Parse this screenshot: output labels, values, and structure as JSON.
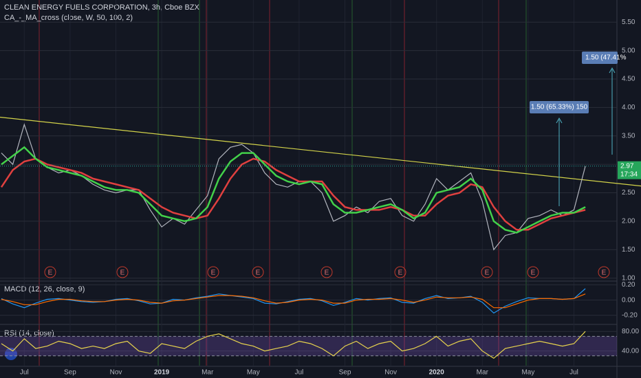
{
  "header": {
    "title": "CLEAN ENERGY FUELS CORPORATION, 3h, Cboe BZX",
    "indicator": "CA_-_MA_cross (close, W, 50, 100, 2)"
  },
  "chart_data": [
    {
      "type": "line",
      "categories": [
        null,
        null,
        "Jul",
        null,
        null,
        null,
        "Sep",
        null,
        null,
        null,
        "Nov",
        null,
        null,
        null,
        "2019",
        null,
        null,
        null,
        "Mar",
        null,
        null,
        null,
        "May",
        null,
        null,
        null,
        "Jul",
        null,
        null,
        null,
        "Sep",
        null,
        null,
        null,
        "Nov",
        null,
        null,
        null,
        "2020",
        null,
        null,
        null,
        "Mar",
        null,
        null,
        null,
        "May",
        null,
        null,
        null,
        "Jul",
        null,
        null
      ],
      "series": [
        {
          "color": "#b2b5be",
          "values": [
            3.2,
            3.0,
            3.7,
            3.1,
            2.95,
            2.85,
            2.9,
            2.8,
            2.65,
            2.55,
            2.5,
            2.55,
            2.55,
            2.2,
            1.9,
            2.05,
            1.95,
            2.2,
            2.45,
            3.1,
            3.3,
            3.35,
            3.2,
            2.85,
            2.65,
            2.6,
            2.7,
            2.7,
            2.5,
            2.0,
            2.1,
            2.25,
            2.15,
            2.35,
            2.4,
            2.1,
            2.0,
            2.3,
            2.75,
            2.55,
            2.7,
            2.85,
            2.35,
            1.5,
            1.75,
            1.8,
            2.05,
            2.1,
            2.2,
            2.1,
            2.2,
            2.97,
            null
          ]
        },
        {
          "color": "#e0403f",
          "values": [
            2.6,
            2.9,
            3.05,
            3.1,
            3.0,
            2.95,
            2.9,
            2.85,
            2.75,
            2.7,
            2.65,
            2.6,
            2.55,
            2.4,
            2.25,
            2.15,
            2.1,
            2.05,
            2.1,
            2.4,
            2.75,
            3.0,
            3.1,
            3.05,
            2.9,
            2.8,
            2.7,
            2.7,
            2.7,
            2.45,
            2.25,
            2.2,
            2.2,
            2.2,
            2.25,
            2.2,
            2.1,
            2.1,
            2.3,
            2.45,
            2.5,
            2.65,
            2.6,
            2.25,
            2.0,
            1.85,
            1.85,
            1.95,
            2.05,
            2.1,
            2.15,
            2.2,
            null
          ]
        },
        {
          "color": "#43d14a",
          "values": [
            3.0,
            3.15,
            3.3,
            3.1,
            2.95,
            2.9,
            2.85,
            2.8,
            2.7,
            2.6,
            2.55,
            2.55,
            2.5,
            2.3,
            2.1,
            2.05,
            2.0,
            2.05,
            2.25,
            2.75,
            3.05,
            3.2,
            3.2,
            3.0,
            2.8,
            2.7,
            2.65,
            2.7,
            2.65,
            2.3,
            2.15,
            2.15,
            2.2,
            2.25,
            2.3,
            2.2,
            2.05,
            2.15,
            2.5,
            2.55,
            2.6,
            2.75,
            2.55,
            2.0,
            1.85,
            1.8,
            1.9,
            2.0,
            2.1,
            2.15,
            2.15,
            2.25,
            null
          ]
        }
      ],
      "ylim": [
        0.96,
        5.89
      ],
      "yticks": [
        {
          "value": 1.0,
          "label": "1.00"
        },
        {
          "value": 1.5,
          "label": "1.50"
        },
        {
          "value": 2.0,
          "label": "2.00"
        },
        {
          "value": 2.5,
          "label": "2.50"
        },
        {
          "value": 3.0,
          "label": "3.00"
        },
        {
          "value": 3.5,
          "label": "3.50"
        },
        {
          "value": 4.0,
          "label": "4.00"
        },
        {
          "value": 4.5,
          "label": "4.50"
        },
        {
          "value": 5.0,
          "label": "5.00"
        },
        {
          "value": 5.5,
          "label": "5.50"
        }
      ],
      "trendline": {
        "color": "#d4d44a",
        "values": [
          3.83,
          2.62
        ]
      },
      "last_price": 2.97,
      "countdown": "17:34",
      "annotations": [
        {
          "label": "1.50 (65.33%) 150"
        },
        {
          "label": "1.50 (47.41%"
        }
      ],
      "earnings_label": "E"
    },
    {
      "type": "line",
      "title": "MACD (12, 26, close, 9)",
      "series": [
        {
          "color": "#2196f3",
          "values": [
            0.02,
            -0.05,
            -0.1,
            -0.04,
            0.01,
            0.02,
            0.0,
            -0.02,
            -0.03,
            -0.02,
            0.01,
            0.02,
            -0.01,
            -0.05,
            -0.04,
            0.01,
            0.0,
            0.03,
            0.05,
            0.08,
            0.06,
            0.04,
            0.02,
            -0.04,
            -0.05,
            -0.02,
            0.01,
            0.02,
            -0.01,
            -0.07,
            -0.03,
            0.02,
            0.0,
            0.02,
            0.03,
            -0.03,
            -0.04,
            0.02,
            0.06,
            0.02,
            0.03,
            0.05,
            -0.03,
            -0.17,
            -0.08,
            -0.02,
            0.03,
            0.02,
            0.02,
            0.01,
            0.02,
            0.15,
            null
          ]
        },
        {
          "color": "#ff6d00",
          "values": [
            0.01,
            -0.02,
            -0.06,
            -0.06,
            -0.02,
            0.01,
            0.01,
            -0.01,
            -0.02,
            -0.02,
            0.0,
            0.01,
            0.0,
            -0.03,
            -0.04,
            -0.01,
            0.0,
            0.02,
            0.04,
            0.06,
            0.06,
            0.05,
            0.03,
            -0.01,
            -0.04,
            -0.03,
            0.0,
            0.01,
            0.0,
            -0.04,
            -0.04,
            0.0,
            0.01,
            0.01,
            0.02,
            0.0,
            -0.03,
            0.0,
            0.04,
            0.03,
            0.03,
            0.04,
            0.01,
            -0.1,
            -0.1,
            -0.05,
            0.0,
            0.02,
            0.02,
            0.01,
            0.02,
            0.08,
            null
          ]
        }
      ],
      "ylim": [
        -0.31,
        0.24
      ],
      "yticks": [
        {
          "value": -0.2,
          "label": "-0.20"
        },
        {
          "value": 0.0,
          "label": "0.00"
        },
        {
          "value": 0.2,
          "label": "0.20"
        }
      ]
    },
    {
      "type": "line",
      "title": "RSI (14, close)",
      "series": [
        {
          "color": "#e8d44d",
          "values": [
            55,
            40,
            65,
            45,
            50,
            60,
            55,
            45,
            50,
            45,
            55,
            60,
            40,
            35,
            55,
            50,
            45,
            60,
            70,
            75,
            65,
            55,
            50,
            40,
            45,
            50,
            60,
            55,
            45,
            30,
            50,
            60,
            45,
            55,
            60,
            40,
            45,
            55,
            70,
            50,
            60,
            65,
            40,
            25,
            45,
            50,
            55,
            60,
            55,
            50,
            55,
            80,
            null
          ]
        }
      ],
      "ylim": [
        10,
        93
      ],
      "yticks": [
        {
          "value": 40,
          "label": "40.00"
        },
        {
          "value": 80,
          "label": "80.00"
        }
      ],
      "band": [
        30,
        70
      ]
    }
  ]
}
